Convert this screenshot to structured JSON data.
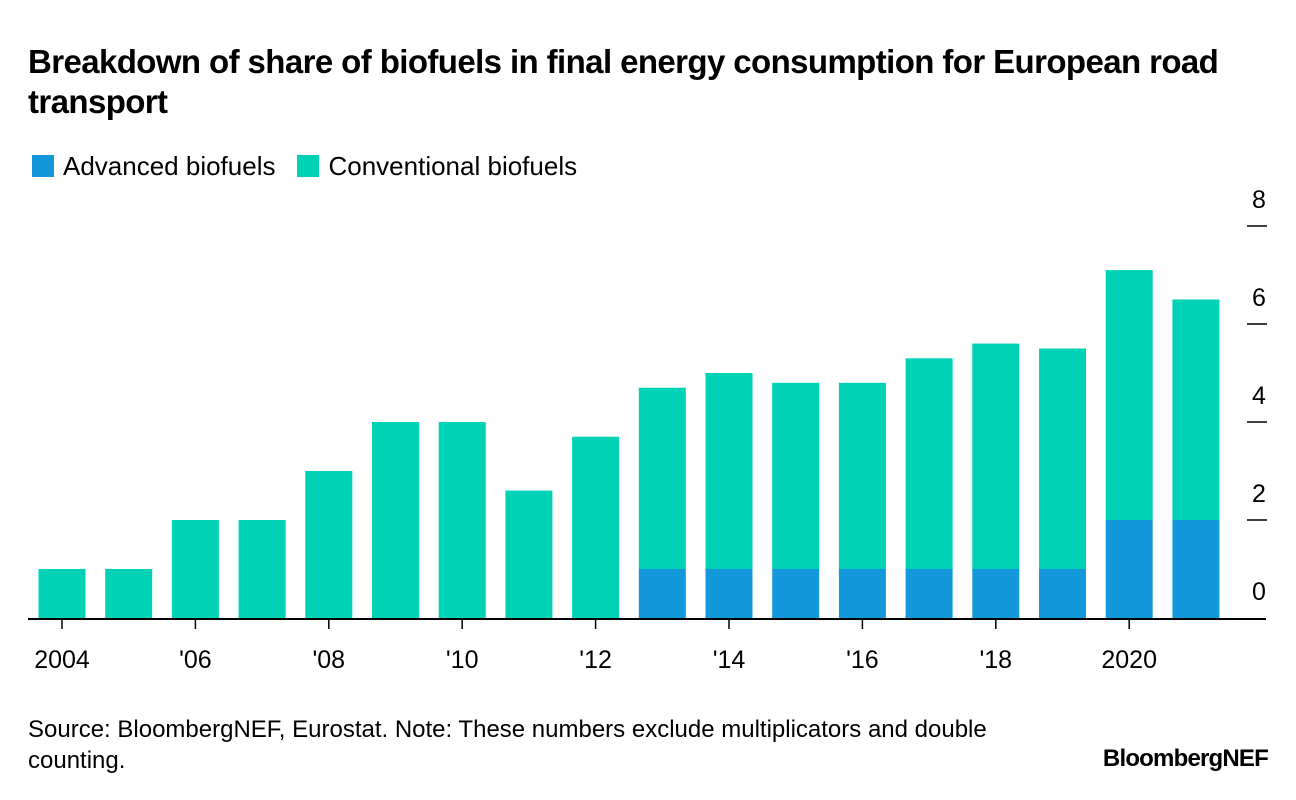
{
  "title": "Breakdown of share of biofuels in final energy consumption for European road transport",
  "footnote": "Source: BloombergNEF, Eurostat. Note: These numbers exclude multiplicators and double counting.",
  "logo": "BloombergNEF",
  "colors": {
    "advanced": "#1399DB",
    "conventional": "#00D2B6",
    "axis": "#000000"
  },
  "chart_data": {
    "type": "bar",
    "stacked": true,
    "title": "Breakdown of share of biofuels in final energy consumption for European road transport",
    "xlabel": "",
    "ylabel": "",
    "ylim": [
      0,
      8
    ],
    "y_ticks": [
      0,
      2,
      4,
      6,
      8
    ],
    "y_axis_position": "right",
    "grid": false,
    "legend_position": "top-left",
    "categories": [
      2004,
      2005,
      2006,
      2007,
      2008,
      2009,
      2010,
      2011,
      2012,
      2013,
      2014,
      2015,
      2016,
      2017,
      2018,
      2019,
      2020,
      2021
    ],
    "x_tick_labels": [
      {
        "year": 2004,
        "label": "2004"
      },
      {
        "year": 2006,
        "label": "'06"
      },
      {
        "year": 2008,
        "label": "'08"
      },
      {
        "year": 2010,
        "label": "'10"
      },
      {
        "year": 2012,
        "label": "'12"
      },
      {
        "year": 2014,
        "label": "'14"
      },
      {
        "year": 2016,
        "label": "'16"
      },
      {
        "year": 2018,
        "label": "'18"
      },
      {
        "year": 2020,
        "label": "2020"
      }
    ],
    "series": [
      {
        "name": "Advanced biofuels",
        "values": [
          0,
          0,
          0,
          0,
          0,
          0,
          0,
          0,
          0,
          1,
          1,
          1,
          1,
          1,
          1,
          1,
          2,
          2
        ]
      },
      {
        "name": "Conventional biofuels",
        "values": [
          1,
          1,
          2,
          2,
          3,
          4,
          4,
          2.6,
          3.7,
          3.7,
          4,
          3.8,
          3.8,
          4.3,
          4.6,
          4.5,
          5.1,
          4.5
        ]
      }
    ]
  }
}
